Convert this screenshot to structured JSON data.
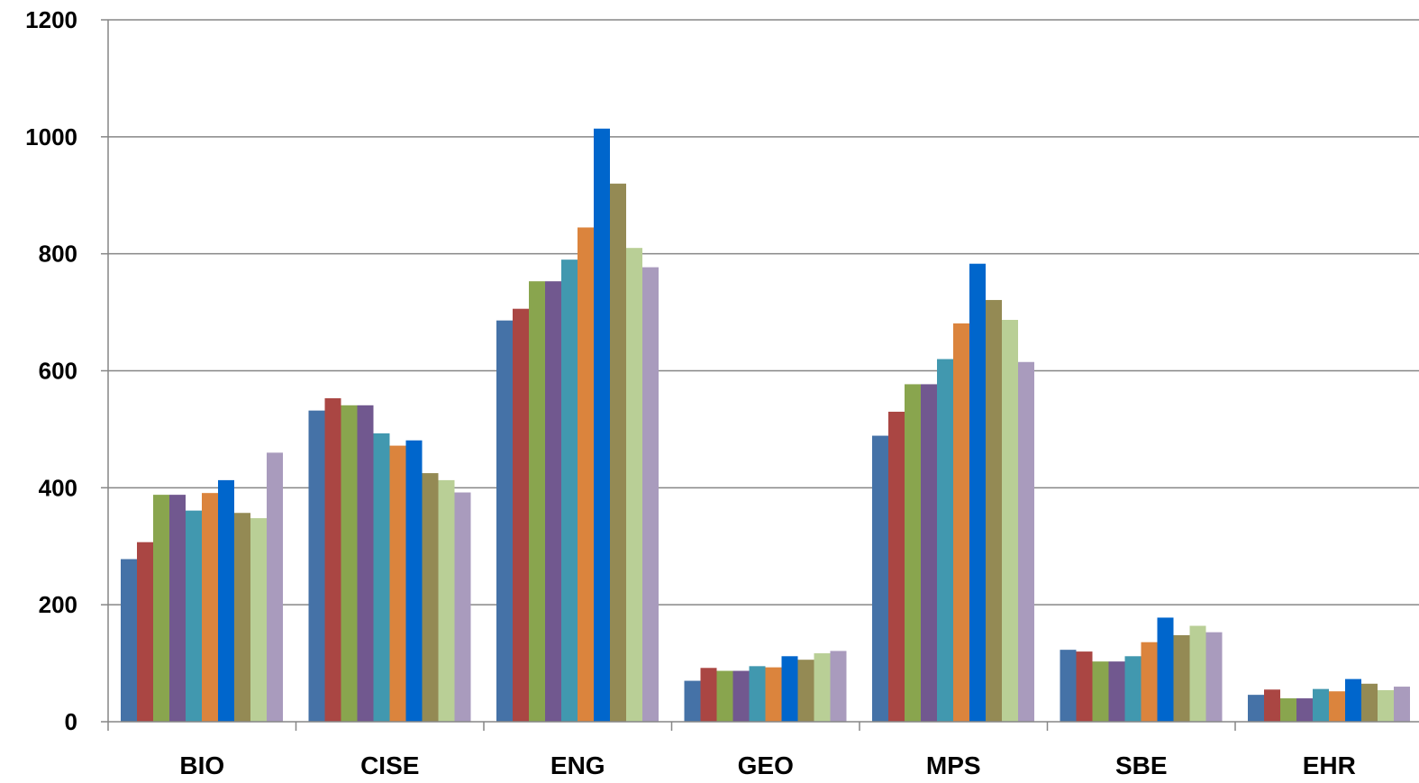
{
  "chart_data": {
    "type": "bar",
    "categories": [
      "BIO",
      "CISE",
      "ENG",
      "GEO",
      "MPS",
      "SBE",
      "EHR"
    ],
    "ylim": [
      0,
      1200
    ],
    "yticks": [
      0,
      200,
      400,
      600,
      800,
      1000,
      1200
    ],
    "ytick_labels": [
      "0",
      "200",
      "400",
      "600",
      "800",
      "1000",
      "1200"
    ],
    "grid": true,
    "legend": "none",
    "series": [
      {
        "color": "#4572A7",
        "values": [
          278,
          532,
          686,
          70,
          489,
          123,
          46
        ]
      },
      {
        "color": "#AA4643",
        "values": [
          307,
          553,
          706,
          92,
          530,
          120,
          55
        ]
      },
      {
        "color": "#89A54E",
        "values": [
          388,
          541,
          753,
          87,
          577,
          103,
          40
        ]
      },
      {
        "color": "#71588F",
        "values": [
          388,
          541,
          753,
          87,
          577,
          103,
          40
        ]
      },
      {
        "color": "#4198AF",
        "values": [
          361,
          493,
          790,
          95,
          620,
          112,
          56
        ]
      },
      {
        "color": "#DB843D",
        "values": [
          391,
          472,
          845,
          93,
          681,
          136,
          52
        ]
      },
      {
        "color": "#0066CC",
        "values": [
          413,
          481,
          1014,
          112,
          783,
          178,
          73
        ]
      },
      {
        "color": "#948A54",
        "values": [
          357,
          425,
          920,
          106,
          721,
          148,
          65
        ]
      },
      {
        "color": "#B9CF96",
        "values": [
          348,
          413,
          810,
          117,
          687,
          164,
          54
        ]
      },
      {
        "color": "#A99BBD",
        "values": [
          460,
          392,
          777,
          121,
          615,
          153,
          60
        ]
      }
    ]
  }
}
